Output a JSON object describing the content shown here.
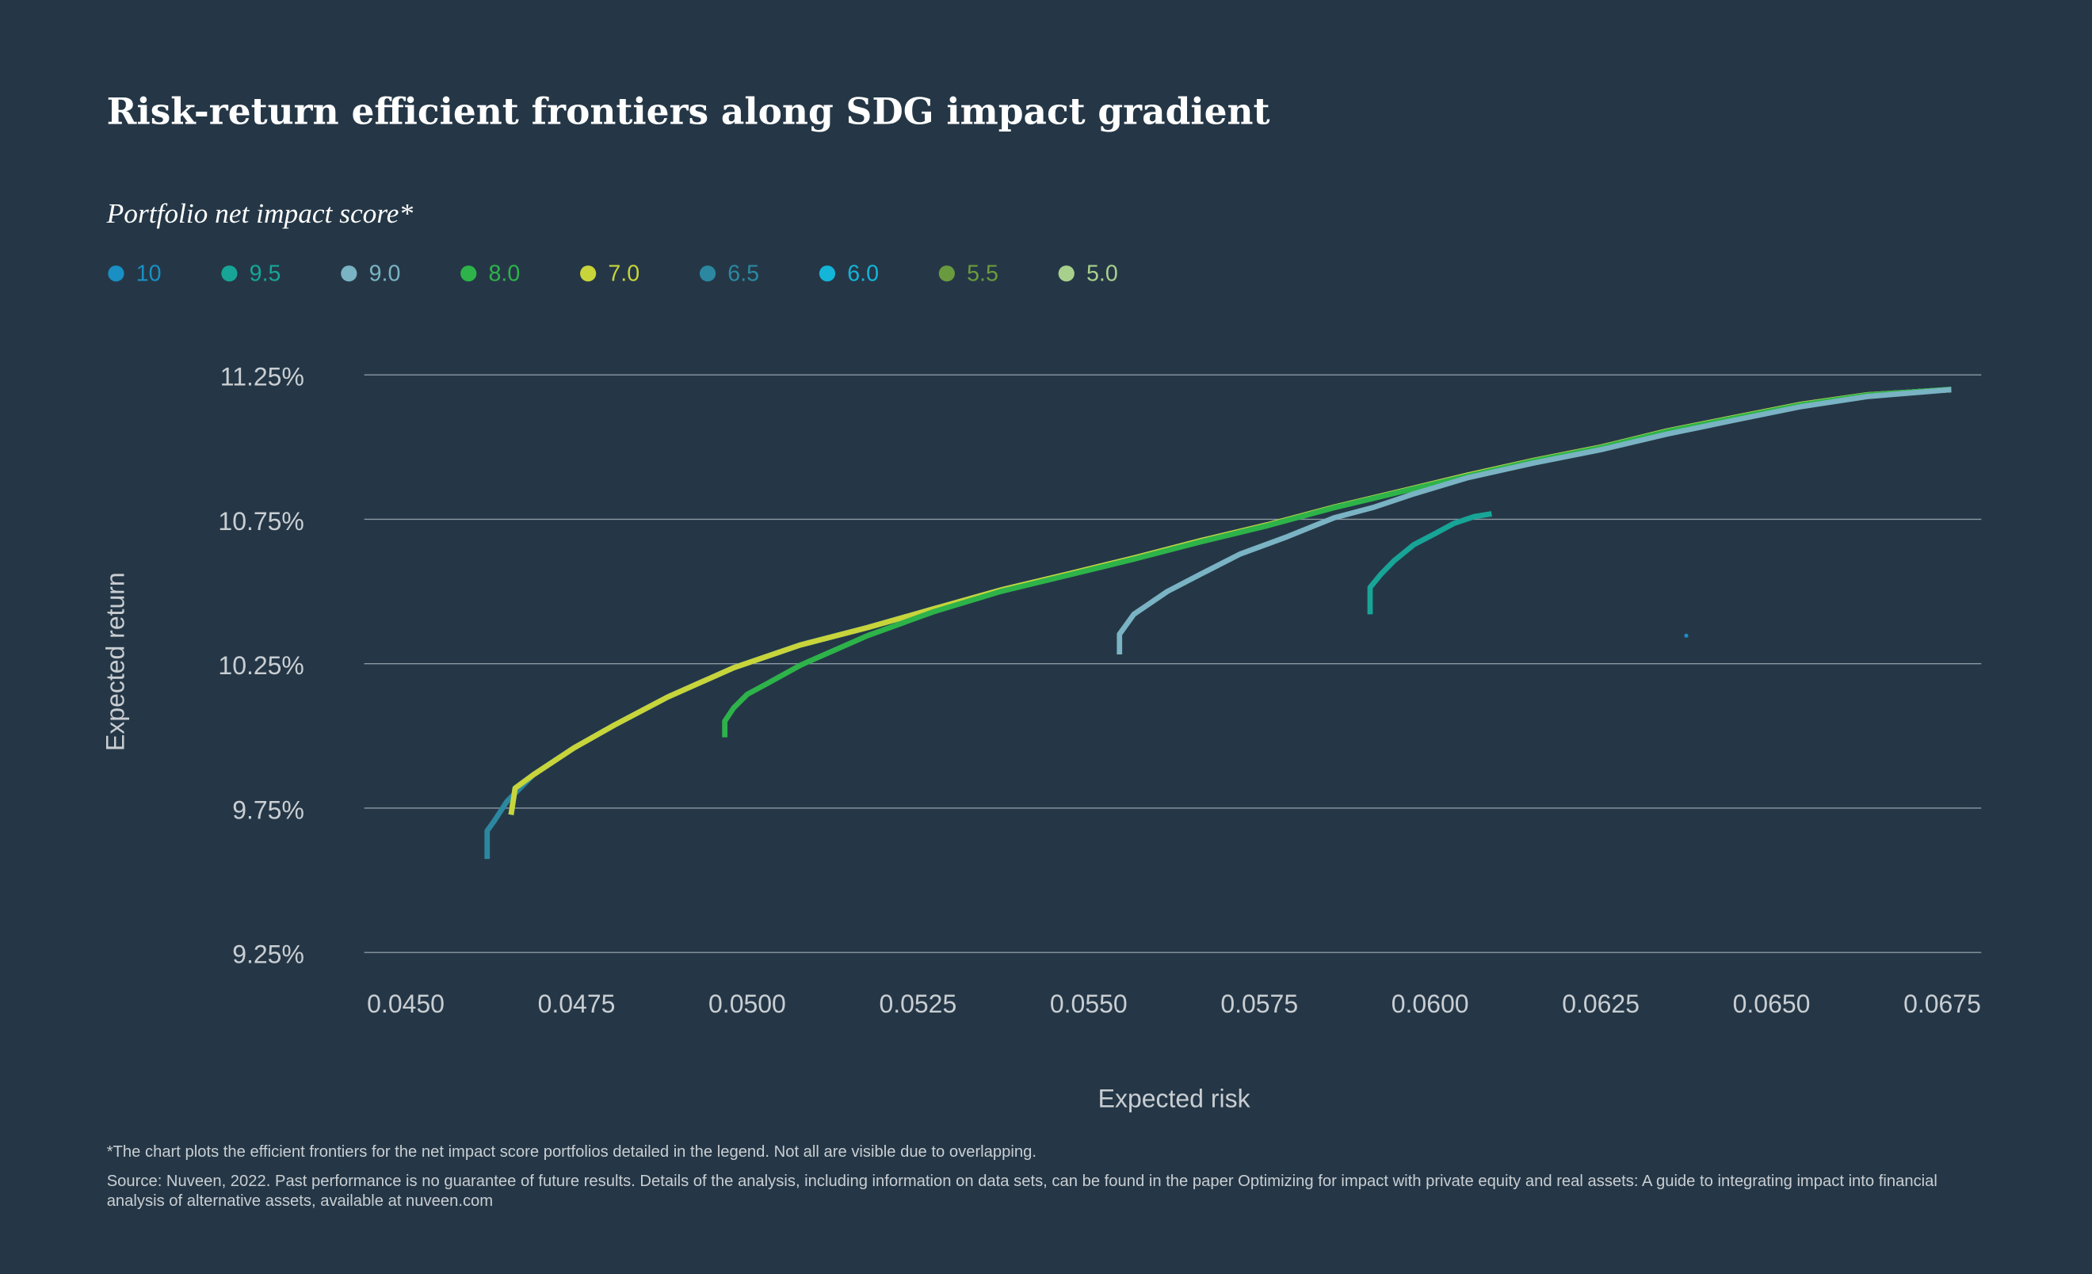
{
  "chart_data": {
    "type": "line",
    "title": "Risk-return efficient frontiers along SDG impact gradient",
    "subtitle": "Portfolio net impact score*",
    "x_label": "Expected risk",
    "y_label": "Expected return",
    "xlim": [
      0.04447,
      0.06815
    ],
    "ylim": [
      9.25,
      11.25
    ],
    "xticks": [
      {
        "value": 0.045,
        "label": "0.0450"
      },
      {
        "value": 0.0475,
        "label": "0.0475"
      },
      {
        "value": 0.05,
        "label": "0.0500"
      },
      {
        "value": 0.0525,
        "label": "0.0525"
      },
      {
        "value": 0.055,
        "label": "0.0550"
      },
      {
        "value": 0.0575,
        "label": "0.0575"
      },
      {
        "value": 0.06,
        "label": "0.0600"
      },
      {
        "value": 0.0625,
        "label": "0.0625"
      },
      {
        "value": 0.065,
        "label": "0.0650"
      },
      {
        "value": 0.0675,
        "label": "0.0675"
      }
    ],
    "yticks": [
      {
        "value": 9.25,
        "label": "9.25%"
      },
      {
        "value": 9.75,
        "label": "9.75%"
      },
      {
        "value": 10.25,
        "label": "10.25%"
      },
      {
        "value": 10.75,
        "label": "10.75%"
      },
      {
        "value": 11.25,
        "label": "11.25%"
      }
    ],
    "grid": true,
    "legend": "top-left",
    "series": [
      {
        "name": "10",
        "color": "#1a8fc4",
        "x": [
          0.06383
        ],
        "values": [
          10.347
        ]
      },
      {
        "name": "9.5",
        "color": "#17a597",
        "x": [
          0.0592,
          0.0592,
          0.05936,
          0.05955,
          0.05984,
          0.06014,
          0.06043,
          0.06072,
          0.06098
        ],
        "values": [
          10.421,
          10.514,
          10.56,
          10.606,
          10.662,
          10.699,
          10.736,
          10.759,
          10.769
        ]
      },
      {
        "name": "9.0",
        "color": "#7ab3c4",
        "x": [
          0.05553,
          0.05553,
          0.05574,
          0.05623,
          0.05672,
          0.0573,
          0.05799,
          0.05867,
          0.05926,
          0.05984,
          0.06063,
          0.0616,
          0.06258,
          0.06355,
          0.06453,
          0.06551,
          0.06648,
          0.06771
        ],
        "values": [
          10.282,
          10.352,
          10.421,
          10.5,
          10.56,
          10.63,
          10.69,
          10.755,
          10.792,
          10.838,
          10.894,
          10.945,
          10.991,
          11.045,
          11.093,
          11.14,
          11.175,
          11.199
        ]
      },
      {
        "name": "8.0",
        "color": "#2db34a",
        "x": [
          0.04975,
          0.04975,
          0.04988,
          0.05008,
          0.05037,
          0.05086,
          0.05184,
          0.05281,
          0.05379,
          0.05477,
          0.05574,
          0.05672,
          0.0577,
          0.05867,
          0.05965,
          0.06063,
          0.0616,
          0.06258,
          0.06355,
          0.06453,
          0.06551,
          0.06648,
          0.06771
        ],
        "values": [
          9.995,
          10.051,
          10.097,
          10.144,
          10.181,
          10.245,
          10.347,
          10.43,
          10.5,
          10.556,
          10.612,
          10.672,
          10.728,
          10.79,
          10.845,
          10.9,
          10.952,
          10.998,
          11.054,
          11.1,
          11.146,
          11.18,
          11.2
        ]
      },
      {
        "name": "7.0",
        "color": "#c8d43a",
        "x": [
          0.04662,
          0.04668,
          0.04695,
          0.04754,
          0.04813,
          0.04891,
          0.04988,
          0.05086,
          0.05184,
          0.05281,
          0.05379,
          0.05477,
          0.05574,
          0.05672,
          0.0577,
          0.05867,
          0.05965,
          0.06063,
          0.0616,
          0.06258,
          0.06355,
          0.06453,
          0.06551,
          0.06648,
          0.06771
        ],
        "values": [
          9.727,
          9.819,
          9.866,
          9.958,
          10.037,
          10.134,
          10.236,
          10.315,
          10.375,
          10.44,
          10.505,
          10.56,
          10.616,
          10.676,
          10.731,
          10.792,
          10.847,
          10.903,
          10.954,
          11.0,
          11.056,
          11.102,
          11.148,
          11.181,
          11.199
        ]
      },
      {
        "name": "6.5",
        "color": "#2b88a0",
        "x": [
          0.04627,
          0.04627,
          0.04637,
          0.04656,
          0.04695,
          0.04754,
          0.04813,
          0.04891,
          0.04988,
          0.05086,
          0.05184,
          0.05281,
          0.05379,
          0.05477,
          0.05574,
          0.05672,
          0.0577,
          0.05867,
          0.05965,
          0.06063,
          0.0616,
          0.06258,
          0.06355,
          0.06453,
          0.06551,
          0.06648,
          0.06771
        ],
        "values": [
          9.574,
          9.671,
          9.704,
          9.773,
          9.866,
          9.958,
          10.037,
          10.134,
          10.236,
          10.315,
          10.375,
          10.44,
          10.505,
          10.56,
          10.616,
          10.676,
          10.731,
          10.792,
          10.847,
          10.903,
          10.954,
          11.0,
          11.056,
          11.102,
          11.148,
          11.181,
          11.199
        ]
      },
      {
        "name": "6.0",
        "color": "#13b5d9",
        "x": [
          0.04662,
          0.04668,
          0.04695,
          0.04754,
          0.04813,
          0.04891,
          0.04988,
          0.05086,
          0.05184,
          0.05281,
          0.05379,
          0.05477,
          0.05574,
          0.05672,
          0.0577,
          0.05867,
          0.05965,
          0.06063,
          0.0616,
          0.06258,
          0.06355,
          0.06453,
          0.06551,
          0.06648,
          0.06771
        ],
        "values": [
          9.727,
          9.819,
          9.866,
          9.958,
          10.037,
          10.134,
          10.236,
          10.315,
          10.375,
          10.44,
          10.505,
          10.56,
          10.616,
          10.676,
          10.731,
          10.792,
          10.847,
          10.903,
          10.954,
          11.0,
          11.056,
          11.102,
          11.148,
          11.181,
          11.199
        ]
      },
      {
        "name": "5.5",
        "color": "#6a9a3e",
        "x": [
          0.04662,
          0.04668,
          0.04695,
          0.04754,
          0.04813,
          0.04891,
          0.04988,
          0.05086,
          0.05184,
          0.05281,
          0.05379,
          0.05477,
          0.05574,
          0.05672,
          0.0577,
          0.05867,
          0.05965,
          0.06063,
          0.0616,
          0.06258,
          0.06355,
          0.06453,
          0.06551,
          0.06648,
          0.06771
        ],
        "values": [
          9.727,
          9.819,
          9.866,
          9.958,
          10.037,
          10.134,
          10.236,
          10.315,
          10.375,
          10.44,
          10.505,
          10.56,
          10.616,
          10.676,
          10.731,
          10.792,
          10.847,
          10.903,
          10.954,
          11.0,
          11.056,
          11.102,
          11.148,
          11.181,
          11.199
        ]
      },
      {
        "name": "5.0",
        "color": "#a8d08d",
        "x": [
          0.04662,
          0.04668,
          0.04695,
          0.04754,
          0.04813,
          0.04891,
          0.04988,
          0.05086,
          0.05184,
          0.05281,
          0.05379,
          0.05477,
          0.05574,
          0.05672,
          0.0577,
          0.05867,
          0.05965,
          0.06063,
          0.0616,
          0.06258,
          0.06355,
          0.06453,
          0.06551,
          0.06648,
          0.06771
        ],
        "values": [
          9.727,
          9.819,
          9.866,
          9.958,
          10.037,
          10.134,
          10.236,
          10.315,
          10.375,
          10.44,
          10.505,
          10.56,
          10.616,
          10.676,
          10.731,
          10.792,
          10.847,
          10.903,
          10.954,
          11.0,
          11.056,
          11.102,
          11.148,
          11.181,
          11.199
        ]
      }
    ],
    "footnote": "*The chart plots the efficient frontiers for the net impact score portfolios detailed in the legend. Not all are visible due to overlapping.",
    "source": "Source: Nuveen, 2022. Past performance is no guarantee of future results. Details of the analysis, including information on data sets, can be found in the paper Optimizing for impact with private equity and real assets: A guide to integrating impact into financial analysis of alternative assets, available at nuveen.com"
  }
}
